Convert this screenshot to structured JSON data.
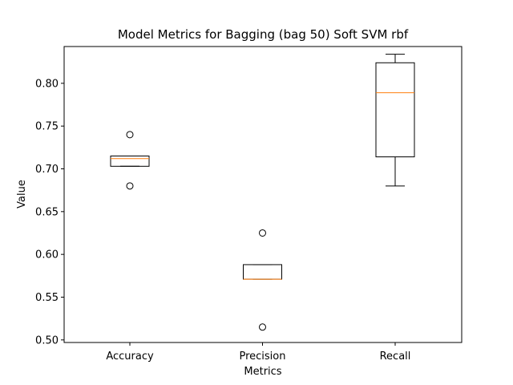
{
  "chart_data": {
    "type": "box",
    "title": "Model Metrics for Bagging (bag 50) Soft SVM rbf",
    "xlabel": "Metrics",
    "ylabel": "Value",
    "categories": [
      "Accuracy",
      "Precision",
      "Recall"
    ],
    "ylim": [
      0.497,
      0.843
    ],
    "yticks": [
      0.5,
      0.55,
      0.6,
      0.65,
      0.7,
      0.75,
      0.8
    ],
    "ytick_labels": [
      "0.50",
      "0.55",
      "0.60",
      "0.65",
      "0.70",
      "0.75",
      "0.80"
    ],
    "boxes": [
      {
        "whisker_low": 0.703,
        "q1": 0.703,
        "median": 0.712,
        "q3": 0.715,
        "whisker_high": 0.715,
        "outliers": [
          0.74,
          0.68
        ]
      },
      {
        "whisker_low": 0.571,
        "q1": 0.571,
        "median": 0.571,
        "q3": 0.588,
        "whisker_high": 0.588,
        "outliers": [
          0.625,
          0.515
        ]
      },
      {
        "whisker_low": 0.68,
        "q1": 0.714,
        "median": 0.789,
        "q3": 0.824,
        "whisker_high": 0.834,
        "outliers": []
      }
    ],
    "colors": {
      "box": "#000000",
      "median": "#ff7f0e",
      "whisker": "#000000",
      "outlier": "#000000"
    },
    "grid": false,
    "legend": "none"
  }
}
